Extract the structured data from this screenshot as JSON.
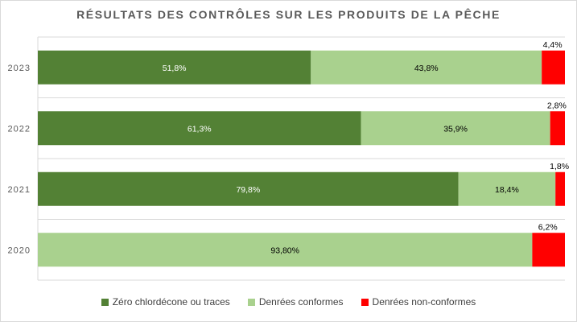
{
  "chart_data": {
    "type": "bar",
    "orientation": "horizontal",
    "stacked": true,
    "title": "RÉSULTATS DES CONTRÔLES SUR LES PRODUITS DE LA PÊCHE",
    "categories": [
      "2023",
      "2022",
      "2021",
      "2020"
    ],
    "xlim": [
      0,
      100
    ],
    "grid": true,
    "legend_position": "bottom",
    "series": [
      {
        "name": "Zéro chlordécone ou traces",
        "color": "#538135",
        "values": [
          51.8,
          61.3,
          79.8,
          0
        ],
        "labels": [
          "51,8%",
          "61,3%",
          "79,8%",
          ""
        ]
      },
      {
        "name": "Denrées conformes",
        "color": "#a9d18e",
        "values": [
          43.8,
          35.9,
          18.4,
          93.8
        ],
        "labels": [
          "43,8%",
          "35,9%",
          "18,4%",
          "93,80%"
        ]
      },
      {
        "name": "Denrées non-conformes",
        "color": "#ff0000",
        "values": [
          4.4,
          2.8,
          1.8,
          6.2
        ],
        "labels": [
          "4,4%",
          "2,8%",
          "1,8%",
          "6,2%"
        ]
      }
    ]
  }
}
